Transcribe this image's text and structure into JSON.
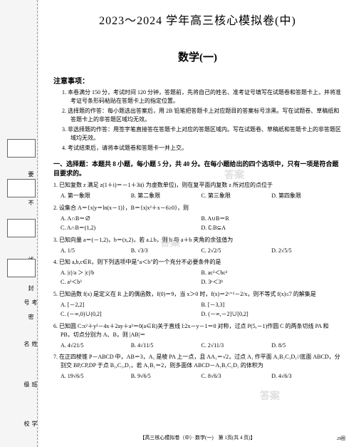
{
  "header": {
    "main_title": "2023～2024 学年高三核心模拟卷(中)",
    "subject": "数学(一)"
  },
  "notice": {
    "header": "注意事项：",
    "items": [
      "1. 本卷满分 150 分，考试时间 120 分钟，答题前，先将自己的姓名、准考证号填写在试题卷和答题卡上，并将准考证号条形码粘贴在答题卡上的指定位置。",
      "2. 选择题的作答：每小题选出答案后，用 2B 铅笔把答题卡上对应题目的答案标号涂黑。写在试题卷、草稿纸和答题卡上的非答题区域均无效。",
      "3. 非选择题的作答：用签字笔直接答在答题卡上对应的答题区域内。写在试题卷、草稿纸和答题卡上的非答题区域均无效。",
      "4. 考试结束后，请将本试题卷和答题卡一并上交。"
    ]
  },
  "section1": {
    "header": "一、选择题：本题共 8 小题，每小题 5 分，共 40 分。在每小题给出的四个选项中，只有一项是符合题目要求的。"
  },
  "questions": [
    {
      "text": "1. 已知复数 z 满足 z(1＋i)＝－1＋3i(i 为虚数单位)，则在复平面内复数 z 所对应的点位于",
      "layout": "four-col",
      "opts": [
        "A. 第一象限",
        "B. 第二象限",
        "C. 第三象限",
        "D. 第四象限"
      ]
    },
    {
      "text": "2. 设集合 A＝{x|y＝ln(x－1)}，B＝{x|x²＋x－6≥0}，则",
      "layout": "two-col",
      "opts": [
        "A. A∩B＝∅",
        "B. A∪B＝R",
        "C. A∩B＝(1,2)",
        "D. ∁ᵣB⊆A"
      ]
    },
    {
      "text": "3. 已知向量 a＝(－1,2)，b＝(x,2)，若 a⊥b，则 b 与 a＋b 夹角的余弦值为",
      "layout": "four-col",
      "opts": [
        "A. 1/5",
        "B. √3/3",
        "C. 2√2/5",
        "D. 2√5/5"
      ]
    },
    {
      "text": "4. 已知 a,b,c∈R，则下列选项中是\"a＜b\"的一个充分不必要条件的是",
      "layout": "two-col",
      "opts": [
        "A. |c|/a ＞ |c|/b",
        "B. ac²＜bc²",
        "C. a³＜b³",
        "D. 3ᵃ＜3ᵇ"
      ]
    },
    {
      "text": "5. 已知函数 f(x) 是定义在 R 上的偶函数，f(0)＝9，当 x＞0 时，f(x)＝2ˣ⁺¹－2/x，则不等式 f(x)≤7 的解集是",
      "layout": "two-col",
      "opts": [
        "A. [－2,2]",
        "B. [－3,3]",
        "C. (－∞,0)∪(0,2]",
        "D. (－∞,－2]∪[0,2]"
      ]
    },
    {
      "text": "6. 已知圆 C:x²＋y²－4x＋2ay＋a²＝0(a∈R)关于直线 l:2x－y－1＝0 对称，过点 P(5,－1)作圆 C 的两条切线 PA 和 PB，切点分别为 A、B，则 |AB|＝",
      "layout": "four-col",
      "opts": [
        "A. 4√21/5",
        "B. 4√11/5",
        "C. 2√11/3",
        "D. 8/5"
      ]
    },
    {
      "text": "7. 在正四棱锥 P－ABCD 中，AB＝3，A₁ 是棱 PA 上一点，且 AA₁＝√2，过点 A₁ 作平面 A₁B₁C₁D₁//底面 ABCD，分别交 BP,CP,DP 于点 B₁,C₁,D₁，若 A₁B₁＝2，则多面体 ABCD－A₁B₁C₁D₁ 的体积为",
      "layout": "four-col",
      "opts": [
        "A. 19√6/5",
        "B. 9√6/5",
        "C. 8√6/3",
        "D. 4√6/3"
      ]
    }
  ],
  "footer": {
    "text": "【高三核心模拟卷（中）· 数学(一)　第 1页(共 4 页)】",
    "bottom_right": "29圈",
    "bottom_left": ""
  },
  "sidebar": {
    "labels": [
      "考号",
      "姓名",
      "班级",
      "学校"
    ],
    "vert": "答 要 不 内 线 封 密"
  },
  "watermarks": {
    "w1": "答案",
    "w2": "答案",
    "w3": "答案"
  },
  "style": {
    "page_bg": "#ffffff",
    "body_bg": "#f5f5f5",
    "title_fontsize": 16,
    "text_fontsize": 8
  }
}
